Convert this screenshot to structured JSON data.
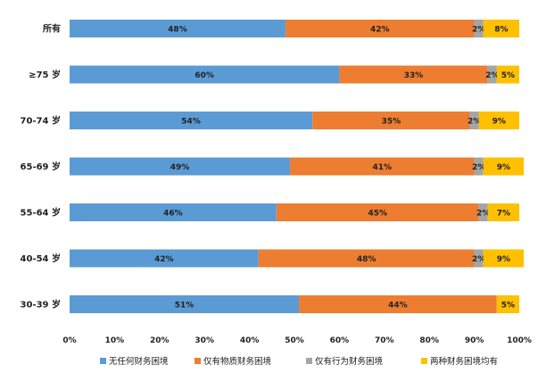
{
  "chart_data": {
    "type": "bar",
    "orientation": "horizontal",
    "stacked": true,
    "percent_stacked": true,
    "categories": [
      "所有",
      "≥75 岁",
      "70-74 岁",
      "65-69 岁",
      "55-64 岁",
      "40-54 岁",
      "30-39 岁"
    ],
    "series": [
      {
        "name": "无任何财务困境",
        "color": "#5B9BD5",
        "values": [
          48,
          60,
          54,
          49,
          46,
          42,
          51
        ],
        "labels": [
          "48%",
          "60%",
          "54%",
          "49%",
          "46%",
          "42%",
          "51%"
        ]
      },
      {
        "name": "仅有物质财务困境",
        "color": "#ED7D31",
        "values": [
          42,
          33,
          35,
          41,
          45,
          48,
          44
        ],
        "labels": [
          "42%",
          "33%",
          "35%",
          "41%",
          "45%",
          "48%",
          "44%"
        ]
      },
      {
        "name": "仅有行为财务困境",
        "color": "#A5A5A5",
        "values": [
          2,
          2,
          2,
          2,
          2,
          2,
          0
        ],
        "labels": [
          "2%",
          "2%",
          "2%",
          "2%",
          "2%",
          "2%",
          ""
        ]
      },
      {
        "name": "两种财务困境均有",
        "color": "#FFC000",
        "values": [
          8,
          5,
          9,
          9,
          7,
          9,
          5
        ],
        "labels": [
          "8%",
          "5%",
          "9%",
          "9%",
          "7%",
          "9%",
          "5%"
        ]
      }
    ],
    "xlim": [
      0,
      100
    ],
    "xticks": [
      "0%",
      "10%",
      "20%",
      "30%",
      "40%",
      "50%",
      "60%",
      "70%",
      "80%",
      "90%",
      "100%"
    ],
    "title": "",
    "xlabel": "",
    "ylabel": "",
    "grid": false,
    "legend_position": "bottom"
  }
}
